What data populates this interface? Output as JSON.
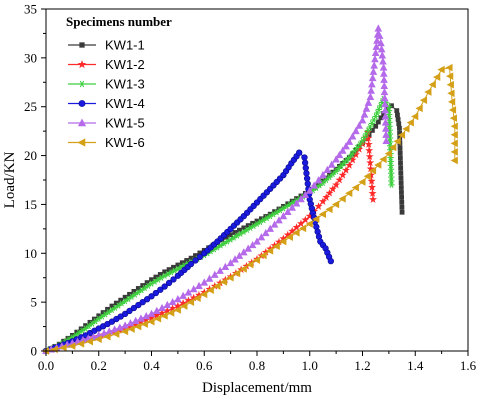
{
  "chart_data": {
    "type": "line",
    "xlabel": "Displacement/mm",
    "ylabel": "Load/KN",
    "xlim": [
      0,
      1.6
    ],
    "ylim": [
      0,
      35
    ],
    "xticks": [
      "0.0",
      "0.2",
      "0.4",
      "0.6",
      "0.8",
      "1.0",
      "1.2",
      "1.4",
      "1.6"
    ],
    "yticks": [
      "0",
      "5",
      "10",
      "15",
      "20",
      "25",
      "30",
      "35"
    ],
    "grid": false,
    "legend_title": "Specimens number",
    "legend_position": "top-left",
    "series": [
      {
        "name": "KW1-1",
        "color": "#3a3a3a",
        "marker": "square",
        "points": [
          [
            0.0,
            0
          ],
          [
            0.05,
            0.7
          ],
          [
            0.1,
            1.6
          ],
          [
            0.15,
            2.6
          ],
          [
            0.2,
            3.6
          ],
          [
            0.25,
            4.6
          ],
          [
            0.3,
            5.5
          ],
          [
            0.35,
            6.4
          ],
          [
            0.4,
            7.3
          ],
          [
            0.45,
            8.1
          ],
          [
            0.5,
            8.8
          ],
          [
            0.55,
            9.5
          ],
          [
            0.6,
            10.3
          ],
          [
            0.65,
            11.1
          ],
          [
            0.7,
            11.9
          ],
          [
            0.75,
            12.6
          ],
          [
            0.8,
            13.3
          ],
          [
            0.85,
            14.0
          ],
          [
            0.9,
            14.8
          ],
          [
            0.95,
            15.6
          ],
          [
            1.0,
            16.4
          ],
          [
            1.05,
            17.4
          ],
          [
            1.1,
            18.6
          ],
          [
            1.15,
            19.8
          ],
          [
            1.2,
            21.3
          ],
          [
            1.25,
            23.0
          ],
          [
            1.28,
            24.3
          ],
          [
            1.31,
            25.1
          ],
          [
            1.33,
            24.6
          ],
          [
            1.34,
            22.8
          ],
          [
            1.35,
            14.2
          ]
        ]
      },
      {
        "name": "KW1-2",
        "color": "#ff2a2a",
        "marker": "star",
        "points": [
          [
            0.0,
            0
          ],
          [
            0.1,
            0.8
          ],
          [
            0.2,
            1.5
          ],
          [
            0.3,
            2.3
          ],
          [
            0.4,
            3.4
          ],
          [
            0.5,
            4.6
          ],
          [
            0.6,
            6.0
          ],
          [
            0.7,
            7.6
          ],
          [
            0.8,
            9.4
          ],
          [
            0.9,
            11.5
          ],
          [
            1.0,
            13.8
          ],
          [
            1.05,
            15.3
          ],
          [
            1.1,
            17.0
          ],
          [
            1.15,
            19.0
          ],
          [
            1.2,
            21.2
          ],
          [
            1.22,
            22.4
          ],
          [
            1.24,
            15.5
          ]
        ]
      },
      {
        "name": "KW1-3",
        "color": "#3fcf3f",
        "marker": "asterisk",
        "points": [
          [
            0.0,
            0
          ],
          [
            0.05,
            0.6
          ],
          [
            0.1,
            1.4
          ],
          [
            0.15,
            2.3
          ],
          [
            0.2,
            3.3
          ],
          [
            0.25,
            4.2
          ],
          [
            0.3,
            5.1
          ],
          [
            0.35,
            6.0
          ],
          [
            0.4,
            6.9
          ],
          [
            0.45,
            7.7
          ],
          [
            0.5,
            8.4
          ],
          [
            0.55,
            9.1
          ],
          [
            0.6,
            9.8
          ],
          [
            0.65,
            10.6
          ],
          [
            0.7,
            11.4
          ],
          [
            0.75,
            12.2
          ],
          [
            0.8,
            13.0
          ],
          [
            0.85,
            13.8
          ],
          [
            0.9,
            14.6
          ],
          [
            0.95,
            15.4
          ],
          [
            1.0,
            16.2
          ],
          [
            1.05,
            17.2
          ],
          [
            1.1,
            18.4
          ],
          [
            1.15,
            19.8
          ],
          [
            1.2,
            21.5
          ],
          [
            1.25,
            24.0
          ],
          [
            1.28,
            25.8
          ],
          [
            1.3,
            25.0
          ],
          [
            1.31,
            17.0
          ]
        ]
      },
      {
        "name": "KW1-4",
        "color": "#1a1adf",
        "marker": "circle",
        "points": [
          [
            0.0,
            0
          ],
          [
            0.05,
            0.5
          ],
          [
            0.1,
            1.0
          ],
          [
            0.15,
            1.6
          ],
          [
            0.2,
            2.3
          ],
          [
            0.25,
            3.0
          ],
          [
            0.3,
            3.8
          ],
          [
            0.35,
            4.7
          ],
          [
            0.4,
            5.6
          ],
          [
            0.45,
            6.6
          ],
          [
            0.5,
            7.7
          ],
          [
            0.55,
            8.9
          ],
          [
            0.6,
            10.0
          ],
          [
            0.65,
            11.2
          ],
          [
            0.7,
            12.5
          ],
          [
            0.75,
            13.8
          ],
          [
            0.8,
            15.2
          ],
          [
            0.85,
            16.6
          ],
          [
            0.9,
            18.0
          ],
          [
            0.93,
            19.2
          ],
          [
            0.96,
            20.3
          ],
          [
            0.98,
            19.8
          ],
          [
            1.0,
            15.5
          ],
          [
            1.02,
            13.2
          ],
          [
            1.04,
            11.2
          ],
          [
            1.06,
            10.5
          ],
          [
            1.08,
            9.2
          ]
        ]
      },
      {
        "name": "KW1-5",
        "color": "#b56aea",
        "marker": "triangle-up",
        "points": [
          [
            0.0,
            0
          ],
          [
            0.1,
            0.8
          ],
          [
            0.2,
            1.6
          ],
          [
            0.3,
            2.6
          ],
          [
            0.4,
            3.8
          ],
          [
            0.5,
            5.3
          ],
          [
            0.6,
            7.0
          ],
          [
            0.7,
            9.0
          ],
          [
            0.8,
            11.2
          ],
          [
            0.9,
            13.8
          ],
          [
            1.0,
            16.4
          ],
          [
            1.05,
            18.0
          ],
          [
            1.1,
            19.6
          ],
          [
            1.15,
            21.4
          ],
          [
            1.2,
            23.6
          ],
          [
            1.23,
            26.0
          ],
          [
            1.25,
            30.5
          ],
          [
            1.26,
            33.0
          ],
          [
            1.27,
            31.5
          ],
          [
            1.28,
            29.0
          ],
          [
            1.29,
            21.5
          ]
        ]
      },
      {
        "name": "KW1-6",
        "color": "#d4a017",
        "marker": "triangle-left",
        "points": [
          [
            0.0,
            0
          ],
          [
            0.1,
            0.5
          ],
          [
            0.2,
            1.2
          ],
          [
            0.3,
            2.0
          ],
          [
            0.4,
            3.0
          ],
          [
            0.5,
            4.2
          ],
          [
            0.6,
            5.8
          ],
          [
            0.7,
            7.5
          ],
          [
            0.8,
            9.3
          ],
          [
            0.9,
            11.2
          ],
          [
            1.0,
            13.0
          ],
          [
            1.1,
            15.0
          ],
          [
            1.2,
            17.3
          ],
          [
            1.3,
            20.2
          ],
          [
            1.4,
            24.0
          ],
          [
            1.45,
            26.5
          ],
          [
            1.5,
            28.8
          ],
          [
            1.53,
            29.0
          ],
          [
            1.54,
            25.5
          ],
          [
            1.55,
            23.0
          ],
          [
            1.55,
            19.5
          ]
        ]
      }
    ]
  }
}
